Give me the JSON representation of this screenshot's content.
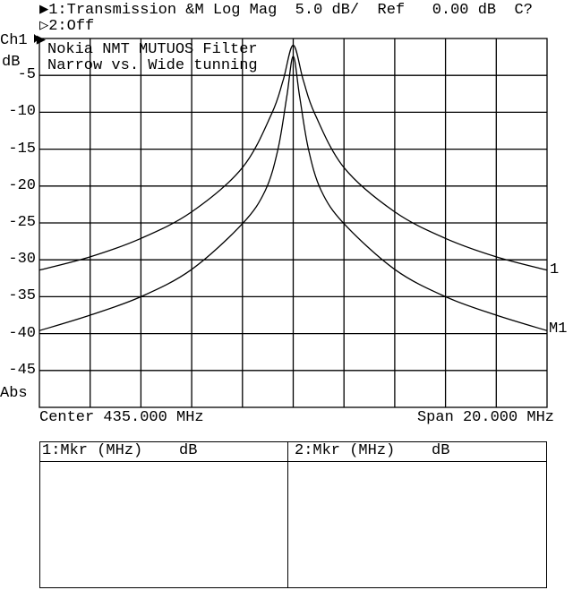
{
  "header": {
    "channel1_line": "▶1:Transmission &M Log Mag  5.0 dB/  Ref   0.00 dB  C?",
    "channel2_line": "▷2:Off"
  },
  "plot": {
    "channel_label": "Ch1 ▶",
    "unit_label": "dB",
    "mode_label": "Abs",
    "annotation_line1": "Nokia NMT MUTUOS Filter",
    "annotation_line2": "Narrow vs. Wide tunning",
    "center_label": "Center 435.000 MHz",
    "span_label": "Span 20.000 MHz",
    "trace_end_label_1": "1",
    "trace_end_label_2": "M1"
  },
  "markers": {
    "col1_header": "1:Mkr (MHz)    dB",
    "col2_header": "2:Mkr (MHz)    dB"
  },
  "chart_data": {
    "type": "line",
    "xlabel": "",
    "ylabel": "dB",
    "xlim": [
      425,
      445
    ],
    "ylim": [
      -50,
      0
    ],
    "y_ticks": [
      -5,
      -10,
      -15,
      -20,
      -25,
      -30,
      -35,
      -40,
      -45
    ],
    "y_tick_labels": [
      "-5",
      "-10",
      "-15",
      "-20",
      "-25",
      "-30",
      "-35",
      "-40",
      "-45"
    ],
    "x_divisions": 10,
    "grid": true,
    "trace_color": "#000000",
    "series": [
      {
        "x": [
          425,
          427,
          429,
          431,
          433,
          434.15,
          434.6,
          435,
          435.4,
          435.85,
          437,
          439,
          441,
          443,
          445
        ],
        "y": [
          -31.4,
          -29.6,
          -27.1,
          -23.5,
          -17.5,
          -10.2,
          -5.7,
          -0.9,
          -5.7,
          -10.2,
          -17.5,
          -23.5,
          -27.1,
          -29.6,
          -31.4
        ]
      },
      {
        "x": [
          425,
          427,
          429,
          431,
          433,
          433.9,
          434.4,
          434.75,
          435,
          435.25,
          435.6,
          436.1,
          437,
          439,
          441,
          443,
          445
        ],
        "y": [
          -39.6,
          -37.5,
          -35.0,
          -31.3,
          -25.1,
          -20.6,
          -15.0,
          -7.8,
          -2.4,
          -7.8,
          -15.0,
          -20.6,
          -25.1,
          -31.3,
          -35.0,
          -37.5,
          -39.6
        ]
      }
    ]
  }
}
